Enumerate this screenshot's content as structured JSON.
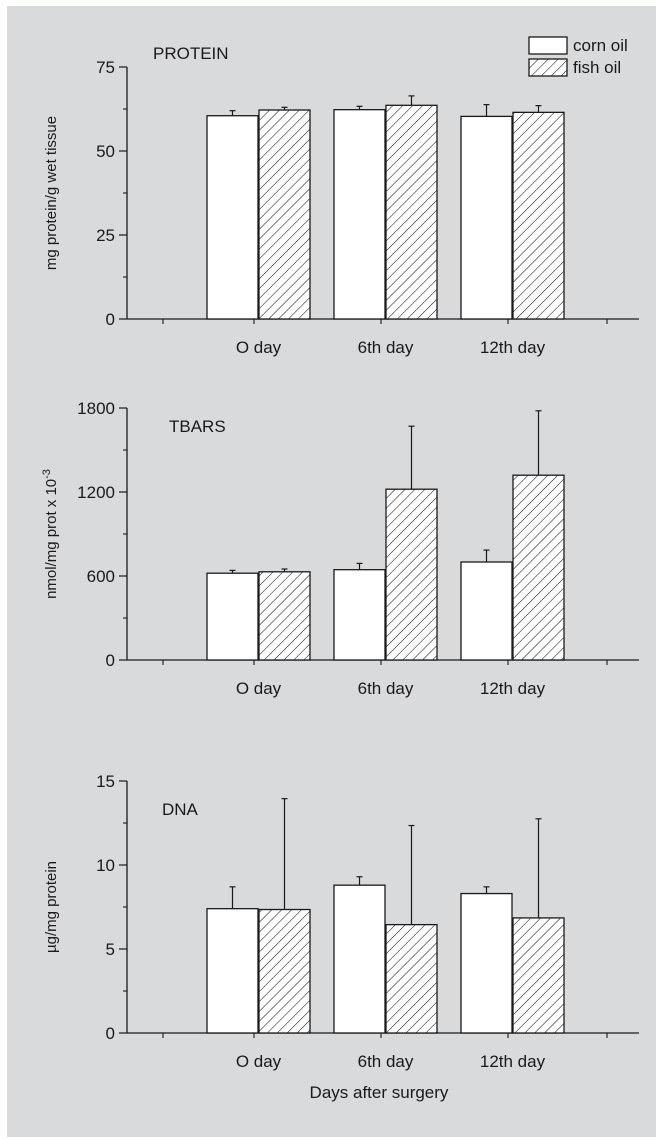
{
  "legend": [
    {
      "label": "corn oil",
      "pattern": "plain"
    },
    {
      "label": "fish oil",
      "pattern": "hatched"
    }
  ],
  "xlabel": "Days after surgery",
  "colors": {
    "background": "#d9dadb",
    "bar_fill": "#ffffff",
    "stroke": "#1a1a1a"
  },
  "chart_data": [
    {
      "type": "bar",
      "title": "PROTEIN",
      "ylabel": "mg protein/g wet tissue",
      "ylim": [
        0,
        75
      ],
      "yticks": [
        0,
        25,
        50,
        75
      ],
      "yminor_step": 12.5,
      "categories": [
        "O day",
        "6th day",
        "12th day"
      ],
      "series": [
        {
          "name": "corn oil",
          "values": [
            60.5,
            62.3,
            60.3
          ],
          "errors": [
            1.5,
            1.0,
            3.5
          ]
        },
        {
          "name": "fish oil",
          "values": [
            62.2,
            63.6,
            61.5
          ],
          "errors": [
            0.8,
            2.8,
            2.0
          ]
        }
      ]
    },
    {
      "type": "bar",
      "title": "TBARS",
      "ylabel": "nmol/mg prot x 10",
      "ylabel_superscript": "-3",
      "ylim": [
        0,
        1800
      ],
      "yticks": [
        0,
        600,
        1200,
        1800
      ],
      "yminor_step": 300,
      "categories": [
        "O day",
        "6th day",
        "12th day"
      ],
      "series": [
        {
          "name": "corn oil",
          "values": [
            620,
            645,
            700
          ],
          "errors": [
            20,
            45,
            85
          ]
        },
        {
          "name": "fish oil",
          "values": [
            630,
            1220,
            1320
          ],
          "errors": [
            20,
            450,
            460
          ]
        }
      ]
    },
    {
      "type": "bar",
      "title": "DNA",
      "ylabel": "µg/mg protein",
      "ylim": [
        0,
        15
      ],
      "yticks": [
        0,
        5,
        10,
        15
      ],
      "yminor_step": 2.5,
      "categories": [
        "O day",
        "6th day",
        "12th day"
      ],
      "series": [
        {
          "name": "corn oil",
          "values": [
            7.4,
            8.8,
            8.3
          ],
          "errors": [
            1.3,
            0.5,
            0.4
          ]
        },
        {
          "name": "fish oil",
          "values": [
            7.35,
            6.45,
            6.85
          ],
          "errors": [
            6.6,
            5.9,
            5.9
          ]
        }
      ]
    }
  ]
}
